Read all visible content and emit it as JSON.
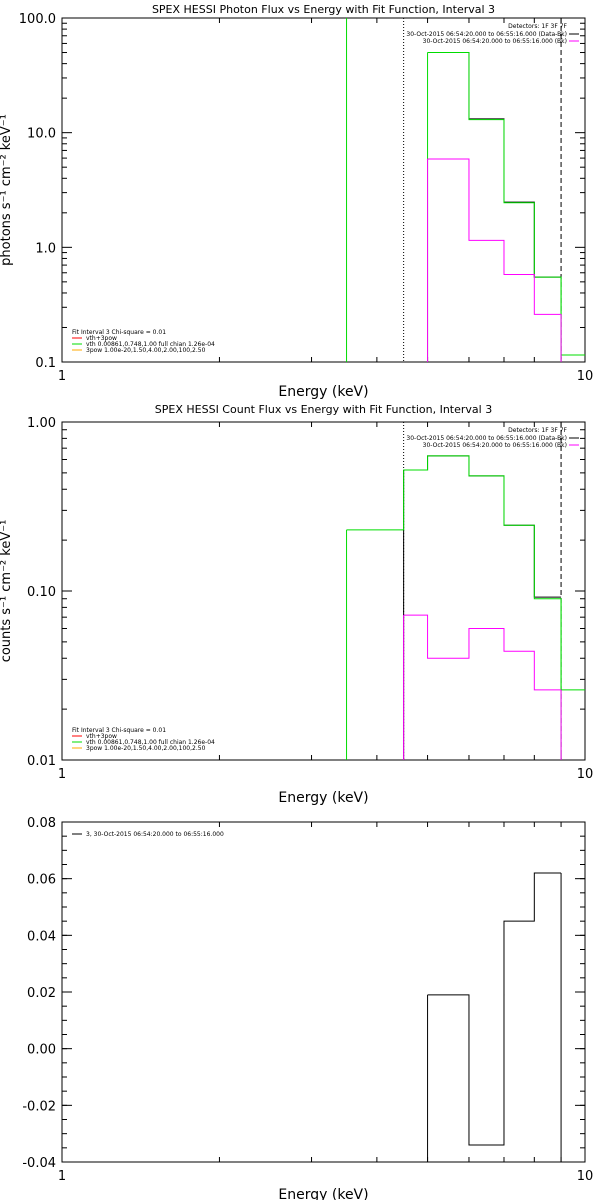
{
  "chart_data": [
    {
      "type": "line",
      "title": "SPEX HESSI Photon Flux vs Energy with Fit Function, Interval 3",
      "xlabel": "Energy (keV)",
      "ylabel": "photons s⁻¹ cm⁻² keV⁻¹",
      "xscale": "log",
      "yscale": "log",
      "xlim": [
        1,
        10
      ],
      "ylim": [
        0.1,
        100
      ],
      "xticks": [
        {
          "value": 1,
          "label": "1"
        },
        {
          "value": 10,
          "label": "10"
        }
      ],
      "yticks": [
        {
          "value": 0.1,
          "label": "0.1"
        },
        {
          "value": 1,
          "label": "1.0"
        },
        {
          "value": 10,
          "label": "10.0"
        },
        {
          "value": 100,
          "label": "100.0"
        }
      ],
      "vlines": [
        {
          "x": 4.5,
          "color": "#000000",
          "dash": "dotted"
        },
        {
          "x": 9.0,
          "color": "#000000",
          "dash": "dashed"
        }
      ],
      "series": [
        {
          "color": "#000000",
          "edges": [
            5.0,
            6.0,
            7.0,
            8.0,
            9.0
          ],
          "values": [
            50.0,
            13.2,
            2.48,
            0.55
          ]
        },
        {
          "color": "#00dd00",
          "edges": [
            5.0,
            6.0,
            7.0,
            8.0,
            9.0,
            10.0
          ],
          "values": [
            50.0,
            13.0,
            2.45,
            0.55,
            0.115
          ],
          "drops": [
            {
              "x": 3.5,
              "from": 100,
              "to": 0.1
            },
            {
              "x": 5.0,
              "from": 0.1,
              "to": 50.0
            },
            {
              "x": 9.0,
              "from": 0.55,
              "to": 0.1
            }
          ]
        },
        {
          "color": "#ff00ff",
          "edges": [
            5.0,
            6.0,
            7.0,
            8.0,
            9.0
          ],
          "values": [
            5.9,
            1.15,
            0.58,
            0.26
          ],
          "drops": [
            {
              "x": 5.0,
              "from": 0.1,
              "to": 5.9
            },
            {
              "x": 9.0,
              "from": 0.26,
              "to": 0.1
            }
          ]
        }
      ],
      "legend_top_right": {
        "header": "Detectors: 1F 3F 7F",
        "entries": [
          {
            "text": "30-Oct-2015 06:54:20.000 to 06:55:16.000 (Data-Bk)",
            "color": "#000000"
          },
          {
            "text": "30-Oct-2015 06:54:20.000 to 06:55:16.000 (Bk)",
            "color": "#ff00ff"
          }
        ]
      },
      "legend_bottom_left": {
        "header": "Fit Interval 3   Chi-square = 0.01",
        "entries": [
          {
            "text": "vth+3pow",
            "color": "#ff0000"
          },
          {
            "text": "vth 0.00861,0.748,1.00   full chian 1.26e-04",
            "color": "#00dd00"
          },
          {
            "text": "3pow 1.00e-20,1.50,4.00,2.00,100,2.50",
            "color": "#ffaa00"
          }
        ]
      }
    },
    {
      "type": "line",
      "title": "SPEX HESSI Count Flux vs Energy with Fit Function, Interval 3",
      "xlabel": "Energy (keV)",
      "ylabel": "counts s⁻¹ cm⁻² keV⁻¹",
      "xscale": "log",
      "yscale": "log",
      "xlim": [
        1,
        10
      ],
      "ylim": [
        0.01,
        1.0
      ],
      "xticks": [
        {
          "value": 1,
          "label": "1"
        },
        {
          "value": 10,
          "label": "10"
        }
      ],
      "yticks": [
        {
          "value": 0.01,
          "label": "0.01"
        },
        {
          "value": 0.1,
          "label": "0.10"
        },
        {
          "value": 1,
          "label": "1.00"
        }
      ],
      "vlines": [
        {
          "x": 4.5,
          "color": "#000000",
          "dash": "dotted"
        },
        {
          "x": 9.0,
          "color": "#000000",
          "dash": "dashed"
        }
      ],
      "series": [
        {
          "color": "#000000",
          "edges": [
            4.5,
            5.0,
            6.0,
            7.0,
            8.0,
            9.0
          ],
          "values": [
            0.52,
            0.63,
            0.48,
            0.245,
            0.092
          ],
          "drops": [
            {
              "x": 4.5,
              "from": 0.01,
              "to": 0.52
            }
          ]
        },
        {
          "color": "#00dd00",
          "edges": [
            3.5,
            4.0,
            4.5,
            5.0,
            6.0,
            7.0,
            8.0,
            9.0,
            10.0
          ],
          "values": [
            0.23,
            0.23,
            0.52,
            0.63,
            0.48,
            0.245,
            0.09,
            0.026
          ],
          "drops": [
            {
              "x": 3.5,
              "from": 0.01,
              "to": 0.23
            },
            {
              "x": 9.0,
              "from": 0.09,
              "to": 0.01
            }
          ]
        },
        {
          "color": "#ff00ff",
          "edges": [
            4.5,
            5.0,
            6.0,
            7.0,
            8.0,
            9.0
          ],
          "values": [
            0.072,
            0.04,
            0.06,
            0.044,
            0.026
          ],
          "drops": [
            {
              "x": 4.5,
              "from": 0.01,
              "to": 0.072
            },
            {
              "x": 9.0,
              "from": 0.026,
              "to": 0.01
            }
          ]
        }
      ],
      "legend_top_right": {
        "header": "Detectors: 1F 3F 7F",
        "entries": [
          {
            "text": "30-Oct-2015 06:54:20.000 to 06:55:16.000 (Data-Bk)",
            "color": "#000000"
          },
          {
            "text": "30-Oct-2015 06:54:20.000 to 06:55:16.000 (Bk)",
            "color": "#ff00ff"
          }
        ]
      },
      "legend_bottom_left": {
        "header": "Fit Interval 3   Chi-square = 0.01",
        "entries": [
          {
            "text": "vth+3pow",
            "color": "#ff0000"
          },
          {
            "text": "vth 0.00861,0.748,1.00   full chian 1.26e-04",
            "color": "#00dd00"
          },
          {
            "text": "3pow 1.00e-20,1.50,4.00,2.00,100,2.50",
            "color": "#ffaa00"
          }
        ]
      }
    },
    {
      "type": "line",
      "title": "",
      "xlabel": "Energy (keV)",
      "ylabel": "",
      "xscale": "log",
      "yscale": "linear",
      "xlim": [
        1,
        10
      ],
      "ylim": [
        -0.04,
        0.08
      ],
      "xticks": [
        {
          "value": 1,
          "label": "1"
        },
        {
          "value": 10,
          "label": "10"
        }
      ],
      "yticks": [
        {
          "value": -0.04,
          "label": "-0.04"
        },
        {
          "value": -0.02,
          "label": "-0.02"
        },
        {
          "value": 0.0,
          "label": "0.00"
        },
        {
          "value": 0.02,
          "label": "0.02"
        },
        {
          "value": 0.04,
          "label": "0.04"
        },
        {
          "value": 0.06,
          "label": "0.06"
        },
        {
          "value": 0.08,
          "label": "0.08"
        }
      ],
      "vlines": [],
      "series": [
        {
          "color": "#000000",
          "edges": [
            5.0,
            6.0,
            7.0,
            8.0,
            9.0
          ],
          "values": [
            0.019,
            -0.034,
            0.045,
            0.062
          ],
          "drops": [
            {
              "x": 5.0,
              "from": -0.04,
              "to": 0.019
            },
            {
              "x": 9.0,
              "from": 0.062,
              "to": -0.04
            }
          ]
        }
      ],
      "legend_top_left": {
        "entries": [
          {
            "text": "3, 30-Oct-2015 06:54:20.000 to 06:55:16.000",
            "color": "#000000"
          }
        ]
      }
    }
  ]
}
